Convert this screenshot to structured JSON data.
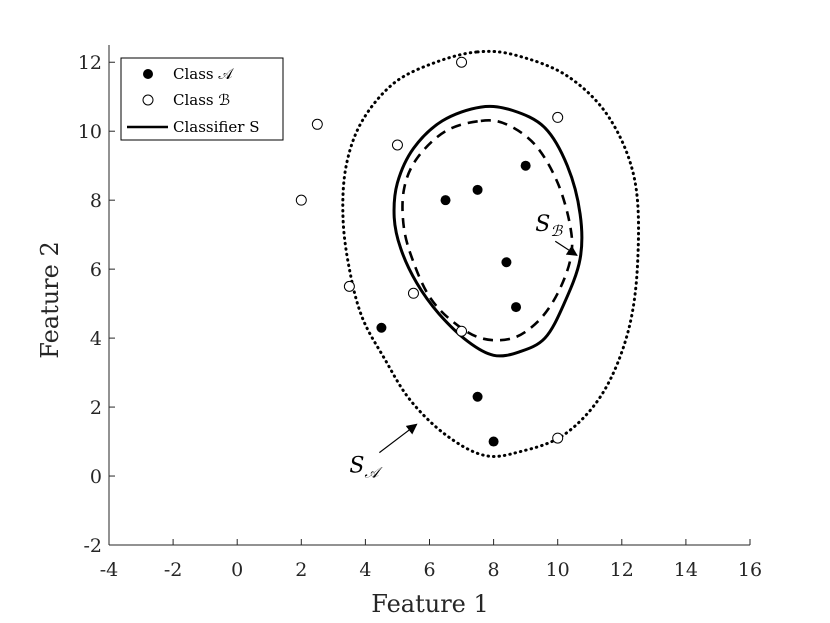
{
  "chart_data": {
    "type": "scatter",
    "xlabel": "Feature 1",
    "ylabel": "Feature 2",
    "xlim": [
      -4,
      16
    ],
    "ylim": [
      -2,
      12.5
    ],
    "x_ticks": [
      -4,
      -2,
      0,
      2,
      4,
      6,
      8,
      10,
      12,
      14,
      16
    ],
    "y_ticks": [
      -2,
      0,
      2,
      4,
      6,
      8,
      10,
      12
    ],
    "x_tick_labels": [
      "-4",
      "-2",
      "0",
      "2",
      "4",
      "6",
      "8",
      "10",
      "12",
      "14",
      "16"
    ],
    "y_tick_labels": [
      "-2",
      "0",
      "2",
      "4",
      "6",
      "8",
      "10",
      "12"
    ],
    "grid": false,
    "legend_position": "top-left",
    "legend": {
      "class_a": "Class 𝒜",
      "class_b": "Class ℬ",
      "classifier": "Classifier S"
    },
    "series": [
      {
        "name": "Class 𝒜",
        "marker": "filled-circle",
        "color": "#000000",
        "points": [
          {
            "x": 6.5,
            "y": 8.0
          },
          {
            "x": 7.5,
            "y": 8.3
          },
          {
            "x": 9.0,
            "y": 9.0
          },
          {
            "x": 8.4,
            "y": 6.2
          },
          {
            "x": 8.7,
            "y": 4.9
          },
          {
            "x": 4.5,
            "y": 4.3
          },
          {
            "x": 7.5,
            "y": 2.3
          },
          {
            "x": 8.0,
            "y": 1.0
          }
        ]
      },
      {
        "name": "Class ℬ",
        "marker": "open-circle",
        "color": "#000000",
        "points": [
          {
            "x": 7.0,
            "y": 12.0
          },
          {
            "x": 2.5,
            "y": 10.2
          },
          {
            "x": 5.0,
            "y": 9.6
          },
          {
            "x": 10.0,
            "y": 10.4
          },
          {
            "x": 2.0,
            "y": 8.0
          },
          {
            "x": 3.5,
            "y": 5.5
          },
          {
            "x": 5.5,
            "y": 5.3
          },
          {
            "x": 7.0,
            "y": 4.2
          },
          {
            "x": 10.0,
            "y": 1.1
          }
        ]
      }
    ],
    "boundaries": [
      {
        "name": "Classifier S",
        "style": "solid",
        "points": [
          [
            7.6,
            10.7
          ],
          [
            8.6,
            10.6
          ],
          [
            9.6,
            10.1
          ],
          [
            10.3,
            9.0
          ],
          [
            10.7,
            7.6
          ],
          [
            10.7,
            6.3
          ],
          [
            10.2,
            5.0
          ],
          [
            9.6,
            4.0
          ],
          [
            8.8,
            3.6
          ],
          [
            8.0,
            3.5
          ],
          [
            7.2,
            3.9
          ],
          [
            6.3,
            4.7
          ],
          [
            5.6,
            5.6
          ],
          [
            5.1,
            6.6
          ],
          [
            4.9,
            7.5
          ],
          [
            5.0,
            8.5
          ],
          [
            5.5,
            9.5
          ],
          [
            6.4,
            10.3
          ]
        ]
      },
      {
        "name": "S_B",
        "style": "dashed",
        "points": [
          [
            7.6,
            10.3
          ],
          [
            8.4,
            10.2
          ],
          [
            9.3,
            9.6
          ],
          [
            10.0,
            8.5
          ],
          [
            10.4,
            7.2
          ],
          [
            10.4,
            6.3
          ],
          [
            10.0,
            5.3
          ],
          [
            9.4,
            4.5
          ],
          [
            8.6,
            4.0
          ],
          [
            7.6,
            4.0
          ],
          [
            6.7,
            4.5
          ],
          [
            6.0,
            5.2
          ],
          [
            5.5,
            6.2
          ],
          [
            5.2,
            7.2
          ],
          [
            5.2,
            8.3
          ],
          [
            5.6,
            9.2
          ],
          [
            6.5,
            10.0
          ]
        ]
      },
      {
        "name": "S_A",
        "style": "dotted",
        "points": [
          [
            7.5,
            12.3
          ],
          [
            8.7,
            12.2
          ],
          [
            10.3,
            11.6
          ],
          [
            11.6,
            10.4
          ],
          [
            12.4,
            8.6
          ],
          [
            12.5,
            6.3
          ],
          [
            12.2,
            4.2
          ],
          [
            11.4,
            2.4
          ],
          [
            10.2,
            1.2
          ],
          [
            8.8,
            0.7
          ],
          [
            7.7,
            0.6
          ],
          [
            6.5,
            1.2
          ],
          [
            5.4,
            2.2
          ],
          [
            4.6,
            3.4
          ],
          [
            3.9,
            4.6
          ],
          [
            3.5,
            6.0
          ],
          [
            3.3,
            7.5
          ],
          [
            3.4,
            9.0
          ],
          [
            3.9,
            10.3
          ],
          [
            4.9,
            11.4
          ],
          [
            6.2,
            12.0
          ]
        ]
      }
    ],
    "annotations": [
      {
        "text": "S",
        "subscript": "ℬ",
        "at": [
          9.3,
          7.1
        ],
        "arrow_to": [
          10.6,
          6.4
        ]
      },
      {
        "text": "S",
        "subscript": "𝒜",
        "at": [
          3.5,
          0.1
        ],
        "arrow_to": [
          5.6,
          1.5
        ]
      }
    ]
  }
}
